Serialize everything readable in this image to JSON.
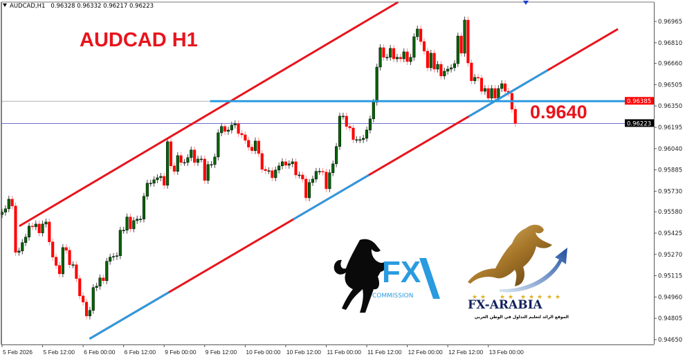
{
  "header": {
    "symbol": "AUDCAD,H1",
    "ohlc": "0.96328 0.96332 0.96217 0.96223"
  },
  "annotations": {
    "title": "AUDCAD  H1",
    "level": "0.9640"
  },
  "logos": {
    "fx_commission": {
      "mark": "FX",
      "sub": "COMMISSION"
    },
    "fx_arabia": {
      "name": "FX-ARABIA",
      "tagline": "الموقع الرائد لتعليم التداول في الوطن العربي"
    }
  },
  "colors": {
    "bull_body": "#006400",
    "bear_body": "#ff0000",
    "channel_line": "#e8141c",
    "support_line": "#2a9be0",
    "price_line": "#5a5ad0",
    "bid_label_bg": "#000000",
    "level_label_bg": "#ff0000"
  },
  "chart_data": {
    "type": "candlestick",
    "symbol": "AUDCAD",
    "timeframe": "H1",
    "ylim": [
      0.9457,
      0.9712
    ],
    "y_ticks": [
      "0.96965",
      "0.96810",
      "0.96660",
      "0.96505",
      "0.96350",
      "0.96195",
      "0.96040",
      "0.95885",
      "0.95730",
      "0.95580",
      "0.95425",
      "0.95270",
      "0.95115",
      "0.94960",
      "0.94805",
      "0.94650"
    ],
    "x_ticks": [
      {
        "bar": 0,
        "label": "5 Feb 2026"
      },
      {
        "bar": 12,
        "label": "5 Feb 12:00"
      },
      {
        "bar": 24,
        "label": "6 Feb 00:00"
      },
      {
        "bar": 36,
        "label": "6 Feb 12:00"
      },
      {
        "bar": 48,
        "label": "9 Feb 00:00"
      },
      {
        "bar": 60,
        "label": "9 Feb 12:00"
      },
      {
        "bar": 72,
        "label": "10 Feb 00:00"
      },
      {
        "bar": 84,
        "label": "10 Feb 12:00"
      },
      {
        "bar": 96,
        "label": "11 Feb 00:00"
      },
      {
        "bar": 108,
        "label": "11 Feb 12:00"
      },
      {
        "bar": 120,
        "label": "12 Feb 00:00"
      },
      {
        "bar": 132,
        "label": "12 Feb 12:00"
      },
      {
        "bar": 144,
        "label": "13 Feb 00:00"
      }
    ],
    "first_open": 0.9556,
    "closes": [
      0.95577,
      0.95602,
      0.95672,
      0.95622,
      0.95285,
      0.95295,
      0.95356,
      0.95396,
      0.95476,
      0.95471,
      0.95491,
      0.95426,
      0.95491,
      0.95506,
      0.95361,
      0.9525,
      0.9519,
      0.95129,
      0.9532,
      0.953,
      0.95195,
      0.95195,
      0.95094,
      0.94968,
      0.94923,
      0.94822,
      0.94863,
      0.95029,
      0.95039,
      0.95099,
      0.95079,
      0.9522,
      0.9525,
      0.95255,
      0.9526,
      0.95446,
      0.95446,
      0.95542,
      0.95456,
      0.95516,
      0.95527,
      0.95527,
      0.95693,
      0.95788,
      0.95788,
      0.95813,
      0.95828,
      0.95838,
      0.95773,
      0.9609,
      0.95914,
      0.95874,
      0.95989,
      0.95939,
      0.95939,
      0.95974,
      0.9603,
      0.95939,
      0.95964,
      0.95964,
      0.95808,
      0.95924,
      0.95924,
      0.95979,
      0.96155,
      0.96201,
      0.96165,
      0.96175,
      0.96211,
      0.96221,
      0.9615,
      0.9614,
      0.961,
      0.9605,
      0.96025,
      0.96095,
      0.96004,
      0.95889,
      0.95879,
      0.95879,
      0.95828,
      0.95884,
      0.95914,
      0.95944,
      0.95919,
      0.95929,
      0.95944,
      0.95848,
      0.95848,
      0.95818,
      0.95682,
      0.95793,
      0.95818,
      0.95874,
      0.95874,
      0.95869,
      0.95748,
      0.95864,
      0.95929,
      0.96055,
      0.96276,
      0.96276,
      0.96201,
      0.9619,
      0.96105,
      0.96105,
      0.96105,
      0.96115,
      0.96175,
      0.96256,
      0.96377,
      0.96633,
      0.96774,
      0.96704,
      0.96704,
      0.96769,
      0.96693,
      0.96704,
      0.96693,
      0.96744,
      0.96673,
      0.96704,
      0.96854,
      0.9691,
      0.96819,
      0.96749,
      0.96628,
      0.96734,
      0.96618,
      0.96653,
      0.96568,
      0.96603,
      0.96618,
      0.96628,
      0.96658,
      0.96859,
      0.96734,
      0.96975,
      0.96663,
      0.96533,
      0.96558,
      0.96553,
      0.96457,
      0.96477,
      0.96407,
      0.96477,
      0.96407,
      0.96477,
      0.96512,
      0.96457,
      0.96442,
      0.96326,
      0.96223
    ],
    "trendlines": [
      {
        "kind": "channel-upper",
        "from": {
          "bar": 5.1,
          "price": 0.95476
        },
        "to": {
          "bar": 117.3,
          "price": 0.97106
        }
      },
      {
        "kind": "channel-lower",
        "from": {
          "bar": 25.9,
          "price": 0.94656
        },
        "to": {
          "bar": 182.4,
          "price": 0.9691
        },
        "highlight_segments": [
          [
            25.9,
            49.4
          ],
          [
            86.2,
            108.6
          ],
          [
            138.2,
            161.6
          ]
        ]
      }
    ],
    "horizontal_levels": [
      {
        "kind": "resistance",
        "price": 0.96385,
        "label": "0.96385",
        "from_bar": 61.6
      },
      {
        "kind": "bid",
        "price": 0.96223,
        "label": "0.96223"
      }
    ]
  }
}
